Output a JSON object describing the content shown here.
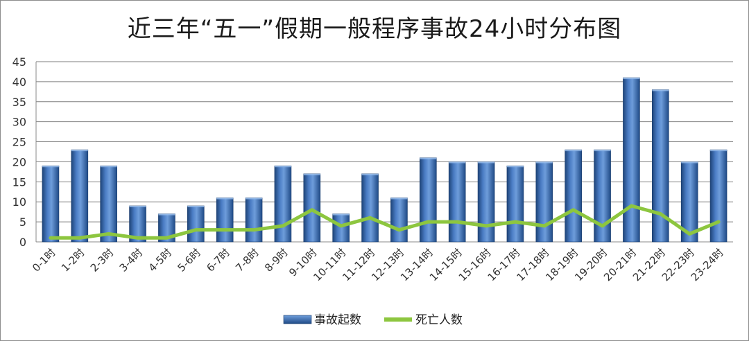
{
  "chart_data": {
    "type": "bar",
    "title": "近三年“五一”假期一般程序事故24小时分布图",
    "categories": [
      "0-1时",
      "1-2时",
      "2-3时",
      "3-4时",
      "4-5时",
      "5-6时",
      "6-7时",
      "7-8时",
      "8-9时",
      "9-10时",
      "10-11时",
      "11-12时",
      "12-13时",
      "13-14时",
      "14-15时",
      "15-16时",
      "16-17时",
      "17-18时",
      "18-19时",
      "19-20时",
      "20-21时",
      "21-22时",
      "22-23时",
      "23-24时"
    ],
    "series": [
      {
        "name": "事故起数",
        "type": "bar",
        "color": "#2f5f9e",
        "values": [
          19,
          23,
          19,
          9,
          7,
          9,
          11,
          11,
          19,
          17,
          7,
          17,
          11,
          21,
          20,
          20,
          19,
          20,
          23,
          23,
          41,
          38,
          20,
          23
        ]
      },
      {
        "name": "死亡人数",
        "type": "line",
        "color": "#8dc63f",
        "values": [
          1,
          1,
          2,
          1,
          1,
          3,
          3,
          3,
          4,
          8,
          4,
          6,
          3,
          5,
          5,
          4,
          5,
          4,
          8,
          4,
          9,
          7,
          2,
          5
        ]
      }
    ],
    "ylim": [
      0,
      45
    ],
    "yticks": [
      0,
      5,
      10,
      15,
      20,
      25,
      30,
      35,
      40,
      45
    ],
    "grid": true,
    "legend": "bottom"
  }
}
